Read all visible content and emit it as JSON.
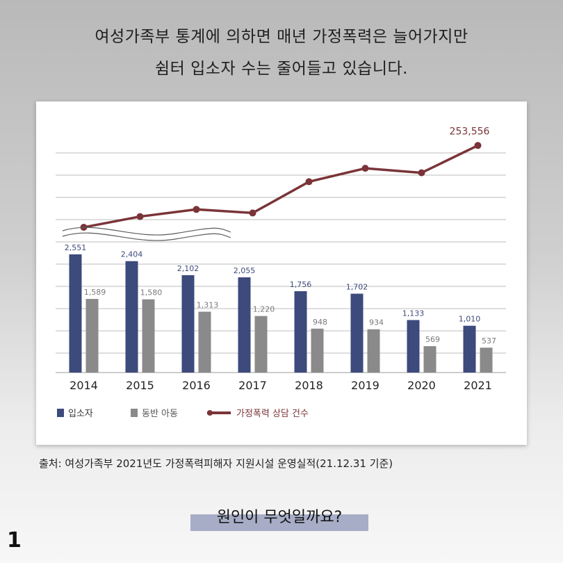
{
  "headline": {
    "line1": "여성가족부 통계에 의하면 매년 가정폭력은 늘어가지만",
    "line2": "쉼터 입소자 수는 줄어들고 있습니다."
  },
  "chart_data": {
    "type": "bar",
    "categories": [
      "2014",
      "2015",
      "2016",
      "2017",
      "2018",
      "2019",
      "2020",
      "2021"
    ],
    "series": [
      {
        "name": "입소자",
        "values": [
          2551,
          2404,
          2102,
          2055,
          1756,
          1702,
          1133,
          1010
        ],
        "labels": [
          "2,551",
          "2,404",
          "2,102",
          "2,055",
          "1,756",
          "1,702",
          "1,133",
          "1,010"
        ],
        "color": "#3d4a7c"
      },
      {
        "name": "동반 아동",
        "values": [
          1589,
          1580,
          1313,
          1220,
          948,
          934,
          569,
          537
        ],
        "labels": [
          "1,589",
          "1,580",
          "1,313",
          "1,220",
          "948",
          "934",
          "569",
          "537"
        ],
        "color": "#8a8a8a"
      }
    ],
    "line_series": {
      "name": "가정폭력 상담 건수",
      "values": [
        162000,
        174000,
        182000,
        178000,
        213000,
        228000,
        223000,
        253556
      ],
      "end_label": "253,556",
      "color": "#7a3438"
    },
    "bar_ylim": [
      0,
      3000
    ],
    "grid": true,
    "legend_position": "bottom-left"
  },
  "source": "출처: 여성가족부 2021년도 가정폭력피해자 지원시설 운영실적(21.12.31 기준)",
  "question": "원인이 무엇일까요?",
  "page_number": "1"
}
